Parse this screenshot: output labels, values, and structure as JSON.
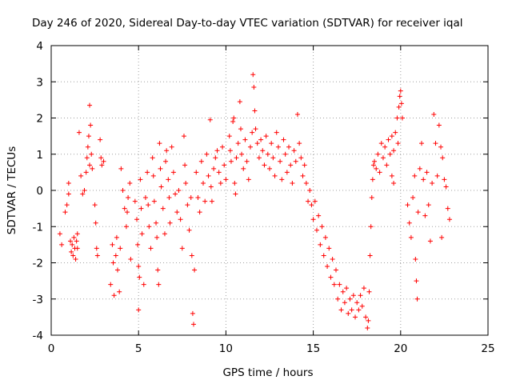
{
  "chart_data": {
    "type": "scatter",
    "title": "Day 246 of 2020, Sidereal Day-to-day VTEC variation (SDTVAR) for receiver iqal",
    "xlabel": "GPS time / hours",
    "ylabel": "SDTVAR / TECUs",
    "xlim": [
      0,
      25
    ],
    "ylim": [
      -4,
      4
    ],
    "x_ticks": [
      0,
      5,
      10,
      15,
      20,
      25
    ],
    "y_ticks": [
      -4,
      -3,
      -2,
      -1,
      0,
      1,
      2,
      3,
      4
    ],
    "x_tick_labels": [
      "0",
      "5",
      "10",
      "15",
      "20",
      "25"
    ],
    "y_tick_labels": [
      "-4",
      "-3",
      "-2",
      "-1",
      "0",
      "1",
      "2",
      "3",
      "4"
    ],
    "grid": true,
    "marker": "+",
    "series": [
      {
        "name": "SDTVAR",
        "color": "#ff0000",
        "points": [
          [
            0.5,
            -1.2
          ],
          [
            0.6,
            -1.5
          ],
          [
            0.8,
            -0.6
          ],
          [
            0.9,
            -0.4
          ],
          [
            1.0,
            0.2
          ],
          [
            1.0,
            -0.1
          ],
          [
            1.1,
            -1.4
          ],
          [
            1.15,
            -1.7
          ],
          [
            1.2,
            -1.5
          ],
          [
            1.25,
            -1.8
          ],
          [
            1.3,
            -1.3
          ],
          [
            1.35,
            -1.6
          ],
          [
            1.4,
            -1.9
          ],
          [
            1.45,
            -1.4
          ],
          [
            1.5,
            -1.2
          ],
          [
            1.5,
            -1.6
          ],
          [
            1.6,
            1.6
          ],
          [
            1.7,
            0.4
          ],
          [
            1.8,
            -0.1
          ],
          [
            1.9,
            0.0
          ],
          [
            2.0,
            0.5
          ],
          [
            2.05,
            0.9
          ],
          [
            2.1,
            1.2
          ],
          [
            2.15,
            1.5
          ],
          [
            2.2,
            2.35
          ],
          [
            2.2,
            0.7
          ],
          [
            2.25,
            1.8
          ],
          [
            2.3,
            1.0
          ],
          [
            2.35,
            0.6
          ],
          [
            2.5,
            -0.4
          ],
          [
            2.55,
            -0.9
          ],
          [
            2.6,
            -1.6
          ],
          [
            2.65,
            -1.8
          ],
          [
            2.8,
            1.4
          ],
          [
            2.85,
            0.9
          ],
          [
            2.9,
            0.7
          ],
          [
            3.0,
            0.8
          ],
          [
            3.4,
            -2.6
          ],
          [
            3.5,
            -1.5
          ],
          [
            3.55,
            -2.0
          ],
          [
            3.6,
            -2.9
          ],
          [
            3.7,
            -1.8
          ],
          [
            3.75,
            -1.3
          ],
          [
            3.8,
            -2.2
          ],
          [
            3.9,
            -2.8
          ],
          [
            3.95,
            -1.6
          ],
          [
            4.0,
            0.6
          ],
          [
            4.1,
            0.0
          ],
          [
            4.2,
            -0.5
          ],
          [
            4.3,
            -1.0
          ],
          [
            4.35,
            -0.6
          ],
          [
            4.4,
            -0.2
          ],
          [
            4.5,
            0.2
          ],
          [
            4.55,
            -1.9
          ],
          [
            4.8,
            -0.3
          ],
          [
            4.9,
            -0.8
          ],
          [
            4.95,
            -1.5
          ],
          [
            5.0,
            -2.1
          ],
          [
            5.0,
            -3.3
          ],
          [
            5.05,
            -2.4
          ],
          [
            5.1,
            0.3
          ],
          [
            5.15,
            -0.5
          ],
          [
            5.2,
            -1.2
          ],
          [
            5.3,
            -2.6
          ],
          [
            5.4,
            -0.2
          ],
          [
            5.5,
            0.5
          ],
          [
            5.55,
            -0.4
          ],
          [
            5.6,
            -1.0
          ],
          [
            5.7,
            -1.6
          ],
          [
            5.8,
            0.9
          ],
          [
            5.85,
            0.4
          ],
          [
            5.9,
            -0.3
          ],
          [
            6.0,
            -0.9
          ],
          [
            6.05,
            -1.3
          ],
          [
            6.1,
            -2.2
          ],
          [
            6.15,
            -2.6
          ],
          [
            6.2,
            1.3
          ],
          [
            6.25,
            0.6
          ],
          [
            6.3,
            0.1
          ],
          [
            6.4,
            -0.5
          ],
          [
            6.5,
            -1.2
          ],
          [
            6.55,
            0.8
          ],
          [
            6.6,
            1.1
          ],
          [
            6.7,
            0.3
          ],
          [
            6.75,
            -0.2
          ],
          [
            6.8,
            -0.9
          ],
          [
            6.9,
            1.2
          ],
          [
            7.0,
            0.5
          ],
          [
            7.1,
            -0.1
          ],
          [
            7.2,
            -0.6
          ],
          [
            7.3,
            0.0
          ],
          [
            7.4,
            -0.8
          ],
          [
            7.5,
            -1.6
          ],
          [
            7.6,
            1.5
          ],
          [
            7.65,
            0.7
          ],
          [
            7.7,
            0.2
          ],
          [
            7.8,
            -0.4
          ],
          [
            7.9,
            -1.1
          ],
          [
            8.0,
            -0.2
          ],
          [
            8.05,
            -1.8
          ],
          [
            8.1,
            -3.4
          ],
          [
            8.15,
            -3.7
          ],
          [
            8.2,
            -2.2
          ],
          [
            8.3,
            0.5
          ],
          [
            8.4,
            -0.2
          ],
          [
            8.5,
            -0.6
          ],
          [
            8.6,
            0.8
          ],
          [
            8.7,
            0.2
          ],
          [
            8.8,
            -0.3
          ],
          [
            8.9,
            1.0
          ],
          [
            9.0,
            0.4
          ],
          [
            9.1,
            1.95
          ],
          [
            9.15,
            0.1
          ],
          [
            9.2,
            -0.3
          ],
          [
            9.3,
            0.6
          ],
          [
            9.4,
            0.9
          ],
          [
            9.5,
            1.1
          ],
          [
            9.6,
            0.5
          ],
          [
            9.7,
            0.2
          ],
          [
            9.8,
            1.2
          ],
          [
            9.9,
            0.7
          ],
          [
            10.0,
            0.3
          ],
          [
            10.2,
            1.5
          ],
          [
            10.25,
            1.1
          ],
          [
            10.3,
            0.8
          ],
          [
            10.4,
            1.9
          ],
          [
            10.45,
            2.0
          ],
          [
            10.5,
            0.2
          ],
          [
            10.55,
            -0.1
          ],
          [
            10.6,
            0.9
          ],
          [
            10.7,
            1.3
          ],
          [
            10.8,
            2.45
          ],
          [
            10.85,
            1.7
          ],
          [
            10.9,
            1.0
          ],
          [
            11.0,
            0.6
          ],
          [
            11.1,
            1.4
          ],
          [
            11.2,
            0.8
          ],
          [
            11.3,
            0.3
          ],
          [
            11.4,
            1.2
          ],
          [
            11.5,
            1.6
          ],
          [
            11.55,
            3.2
          ],
          [
            11.6,
            2.85
          ],
          [
            11.65,
            2.2
          ],
          [
            11.7,
            1.7
          ],
          [
            11.8,
            1.3
          ],
          [
            11.9,
            0.9
          ],
          [
            12.0,
            1.4
          ],
          [
            12.1,
            1.1
          ],
          [
            12.2,
            0.7
          ],
          [
            12.3,
            1.5
          ],
          [
            12.4,
            1.0
          ],
          [
            12.5,
            0.6
          ],
          [
            12.6,
            1.3
          ],
          [
            12.7,
            0.9
          ],
          [
            12.8,
            0.4
          ],
          [
            12.9,
            1.6
          ],
          [
            13.0,
            1.2
          ],
          [
            13.1,
            0.8
          ],
          [
            13.2,
            0.3
          ],
          [
            13.3,
            1.4
          ],
          [
            13.4,
            1.0
          ],
          [
            13.5,
            0.5
          ],
          [
            13.6,
            1.2
          ],
          [
            13.7,
            0.7
          ],
          [
            13.8,
            0.2
          ],
          [
            13.9,
            1.1
          ],
          [
            14.0,
            0.8
          ],
          [
            14.1,
            2.1
          ],
          [
            14.2,
            1.3
          ],
          [
            14.3,
            0.9
          ],
          [
            14.4,
            0.4
          ],
          [
            14.5,
            0.7
          ],
          [
            14.6,
            0.2
          ],
          [
            14.7,
            -0.3
          ],
          [
            14.8,
            0.0
          ],
          [
            14.9,
            -0.4
          ],
          [
            15.0,
            -0.8
          ],
          [
            15.1,
            -0.3
          ],
          [
            15.2,
            -1.1
          ],
          [
            15.3,
            -0.7
          ],
          [
            15.4,
            -1.5
          ],
          [
            15.5,
            -1.0
          ],
          [
            15.6,
            -1.8
          ],
          [
            15.7,
            -1.3
          ],
          [
            15.8,
            -2.1
          ],
          [
            15.9,
            -1.6
          ],
          [
            16.0,
            -2.4
          ],
          [
            16.1,
            -1.9
          ],
          [
            16.2,
            -2.6
          ],
          [
            16.3,
            -2.2
          ],
          [
            16.4,
            -3.0
          ],
          [
            16.5,
            -2.6
          ],
          [
            16.6,
            -3.3
          ],
          [
            16.7,
            -2.8
          ],
          [
            16.8,
            -3.1
          ],
          [
            16.9,
            -2.7
          ],
          [
            17.0,
            -3.4
          ],
          [
            17.1,
            -3.0
          ],
          [
            17.2,
            -3.3
          ],
          [
            17.3,
            -2.9
          ],
          [
            17.4,
            -3.5
          ],
          [
            17.5,
            -3.1
          ],
          [
            17.6,
            -3.3
          ],
          [
            17.7,
            -2.9
          ],
          [
            17.8,
            -3.2
          ],
          [
            17.9,
            -2.7
          ],
          [
            18.0,
            -3.5
          ],
          [
            18.1,
            -3.8
          ],
          [
            18.15,
            -3.6
          ],
          [
            18.2,
            -2.8
          ],
          [
            18.25,
            -1.8
          ],
          [
            18.3,
            -1.0
          ],
          [
            18.35,
            -0.2
          ],
          [
            18.4,
            0.3
          ],
          [
            18.45,
            0.7
          ],
          [
            18.5,
            0.8
          ],
          [
            18.6,
            0.6
          ],
          [
            18.7,
            1.0
          ],
          [
            18.8,
            0.5
          ],
          [
            18.9,
            1.3
          ],
          [
            19.0,
            0.9
          ],
          [
            19.1,
            1.2
          ],
          [
            19.2,
            0.7
          ],
          [
            19.3,
            1.4
          ],
          [
            19.4,
            1.0
          ],
          [
            19.5,
            1.5
          ],
          [
            19.6,
            1.1
          ],
          [
            19.7,
            1.6
          ],
          [
            19.8,
            2.0
          ],
          [
            19.85,
            1.3
          ],
          [
            19.9,
            2.3
          ],
          [
            19.95,
            2.6
          ],
          [
            20.0,
            2.75
          ],
          [
            20.05,
            2.4
          ],
          [
            20.1,
            2.0
          ],
          [
            19.6,
            0.2
          ],
          [
            19.5,
            0.4
          ],
          [
            20.4,
            -0.4
          ],
          [
            20.5,
            -0.9
          ],
          [
            20.6,
            -1.3
          ],
          [
            20.7,
            -0.2
          ],
          [
            20.8,
            0.4
          ],
          [
            20.85,
            -1.9
          ],
          [
            20.9,
            -2.5
          ],
          [
            20.95,
            -3.0
          ],
          [
            21.0,
            -0.6
          ],
          [
            21.1,
            0.6
          ],
          [
            21.2,
            1.3
          ],
          [
            21.3,
            0.3
          ],
          [
            21.4,
            -0.7
          ],
          [
            21.5,
            0.5
          ],
          [
            21.6,
            -0.4
          ],
          [
            21.7,
            -1.4
          ],
          [
            21.8,
            0.2
          ],
          [
            21.9,
            2.1
          ],
          [
            22.0,
            1.3
          ],
          [
            22.1,
            0.4
          ],
          [
            22.2,
            1.8
          ],
          [
            22.3,
            1.2
          ],
          [
            22.35,
            -1.3
          ],
          [
            22.4,
            0.9
          ],
          [
            22.5,
            0.3
          ],
          [
            22.6,
            0.1
          ],
          [
            22.7,
            -0.5
          ],
          [
            22.8,
            -0.8
          ]
        ]
      }
    ]
  }
}
